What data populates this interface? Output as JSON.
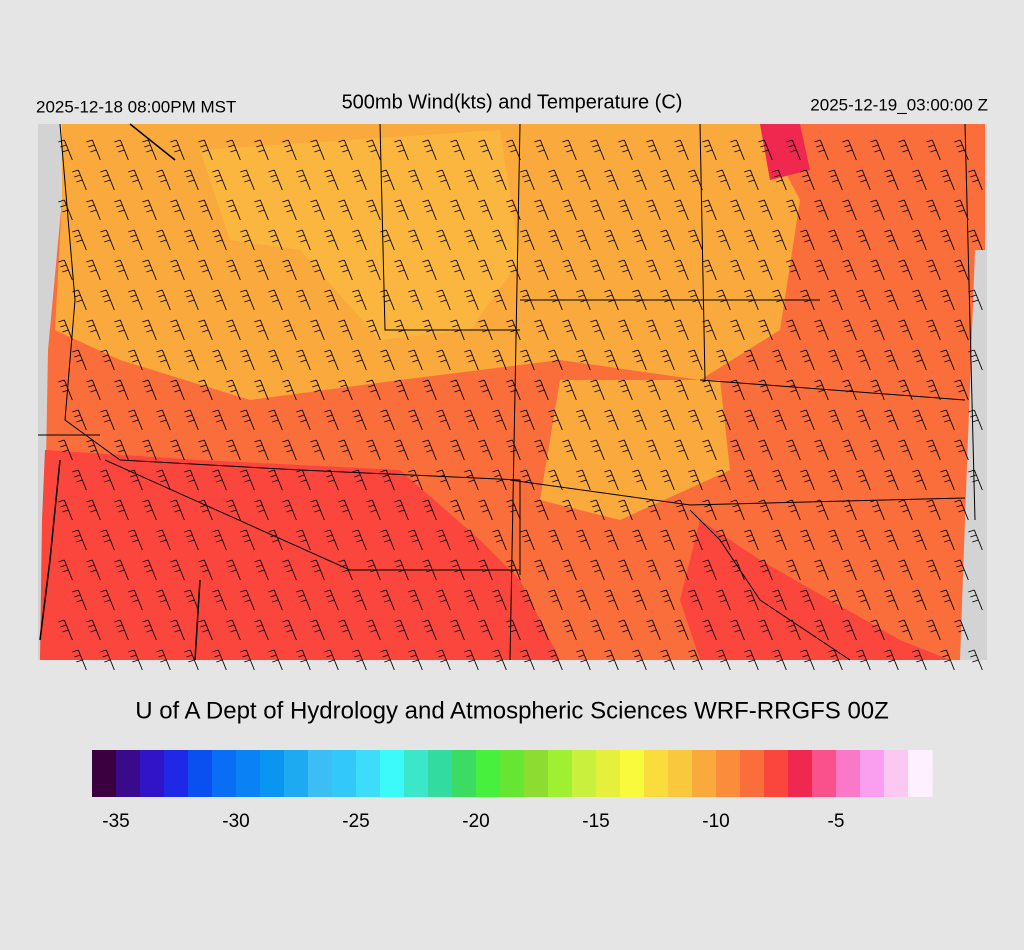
{
  "header": {
    "title": "500mb Wind(kts) and Temperature (C)",
    "valid_local": "2025-12-18 08:00PM MST",
    "valid_utc": "2025-12-19_03:00:00 Z"
  },
  "credit": "U of A Dept of Hydrology and Atmospheric Sciences WRF-RRGFS 00Z",
  "colorbar": {
    "range": [
      -36,
      -1
    ],
    "ticks": [
      -35,
      -30,
      -25,
      -20,
      -15,
      -10,
      -5
    ],
    "colors": [
      "#3a0040",
      "#3a0a8c",
      "#3214c8",
      "#1e28e6",
      "#0a50f0",
      "#0a6ef5",
      "#0a82f5",
      "#0a96f0",
      "#1eaaf0",
      "#3cbef5",
      "#32c8fa",
      "#3cdcfa",
      "#3cfafa",
      "#3ce6c8",
      "#32dca0",
      "#3cdc64",
      "#46f03c",
      "#64e632",
      "#8cdc32",
      "#a0f032",
      "#c8f03c",
      "#e6f03c",
      "#fafa3c",
      "#fadc3c",
      "#fac83c",
      "#faaa3c",
      "#fa8c3c",
      "#fa6e3c",
      "#fa463c",
      "#f02850",
      "#fa508c",
      "#fa78c8",
      "#fa9ef0",
      "#fac8f0",
      "#fff0ff"
    ]
  }
}
